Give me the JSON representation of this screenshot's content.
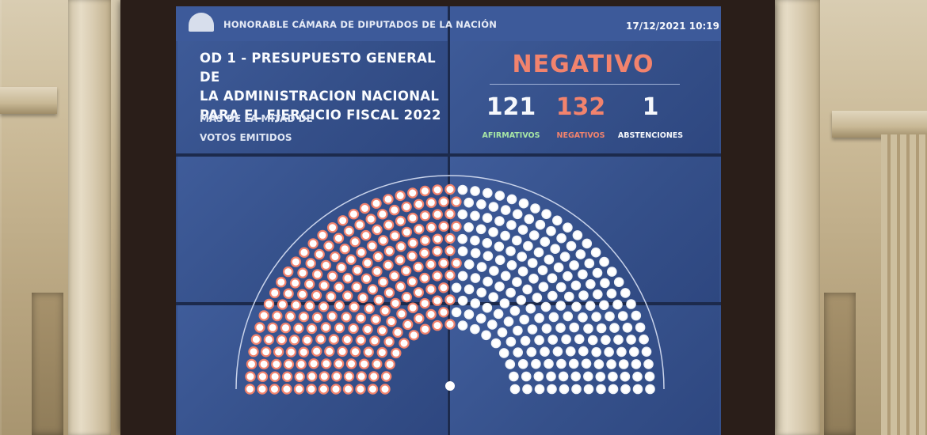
{
  "header": {
    "institution": "HONORABLE CÁMARA DE DIPUTADOS DE LA NACIÓN",
    "datetime": "17/12/2021 10:19"
  },
  "motion": {
    "title": "OD 1 - PRESUPUESTO GENERAL DE\nLA ADMINISTRACION NACIONAL\nPARA EL EJERCICIO FISCAL 2022",
    "requirement": "MÁS DE LA MITAD DE\nVOTOS EMITIDOS"
  },
  "result": {
    "label": "NEGATIVO",
    "color": "#f2836d"
  },
  "counts": {
    "afirmativos": {
      "value": "121",
      "label": "AFIRMATIVOS",
      "color": "#a7e6a5"
    },
    "negativos": {
      "value": "132",
      "label": "NEGATIVOS",
      "color": "#f2836d"
    },
    "abstenciones": {
      "value": "1",
      "label": "ABSTENCIONES",
      "color": "#f6f8fc"
    }
  },
  "hemicycle": {
    "seat_colors": {
      "negativo": "#f2836d",
      "afirmativo": "#eef1f6",
      "seat_face": "#ffffff"
    },
    "negative_share": 0.52
  }
}
